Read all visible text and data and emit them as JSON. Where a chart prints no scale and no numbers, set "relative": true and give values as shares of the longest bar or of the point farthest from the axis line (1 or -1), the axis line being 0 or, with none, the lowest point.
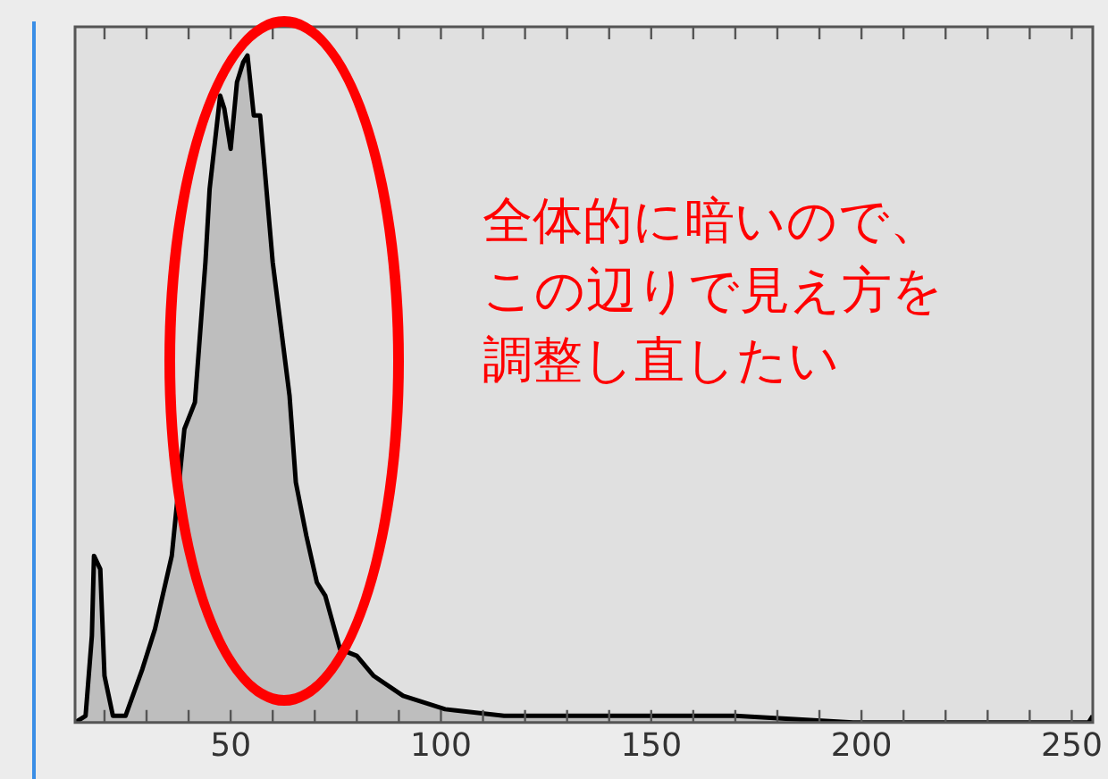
{
  "chart_data": {
    "type": "area",
    "relative": true,
    "x": [
      13,
      15.5,
      17,
      17.5,
      19,
      20,
      22,
      25,
      29,
      32,
      36,
      39,
      41.5,
      44,
      45,
      47.5,
      48.5,
      50,
      51.5,
      53,
      54,
      55.5,
      57,
      60,
      64,
      65.5,
      68,
      70.5,
      72.5,
      76,
      80,
      84,
      91,
      101,
      115,
      142,
      170,
      198,
      254,
      255
    ],
    "series": [
      {
        "color": "#000000",
        "values": [
          0,
          0.01,
          0.13,
          0.25,
          0.23,
          0.07,
          0.01,
          0.01,
          0.08,
          0.14,
          0.25,
          0.44,
          0.48,
          0.69,
          0.8,
          0.94,
          0.92,
          0.86,
          0.96,
          0.99,
          1,
          0.91,
          0.91,
          0.69,
          0.49,
          0.36,
          0.28,
          0.21,
          0.19,
          0.11,
          0.1,
          0.07,
          0.04,
          0.02,
          0.01,
          0.01,
          0.01,
          0,
          0,
          0.01
        ]
      }
    ],
    "xlim": [
      13,
      255
    ],
    "xticks": [
      {
        "value": 20,
        "label": null
      },
      {
        "value": 30,
        "label": null
      },
      {
        "value": 40,
        "label": null
      },
      50,
      {
        "value": 60,
        "label": null
      },
      {
        "value": 70,
        "label": null
      },
      {
        "value": 80,
        "label": null
      },
      {
        "value": 90,
        "label": null
      },
      100,
      {
        "value": 110,
        "label": null
      },
      {
        "value": 120,
        "label": null
      },
      {
        "value": 130,
        "label": null
      },
      {
        "value": 140,
        "label": null
      },
      150,
      {
        "value": 160,
        "label": null
      },
      {
        "value": 170,
        "label": null
      },
      {
        "value": 180,
        "label": null
      },
      {
        "value": 190,
        "label": null
      },
      200,
      {
        "value": 210,
        "label": null
      },
      {
        "value": 220,
        "label": null
      },
      {
        "value": 230,
        "label": null
      },
      {
        "value": 240,
        "label": null
      },
      250
    ],
    "annotations": [
      "全体的に暗いので、この辺りで見え方を調整し直したい"
    ]
  }
}
